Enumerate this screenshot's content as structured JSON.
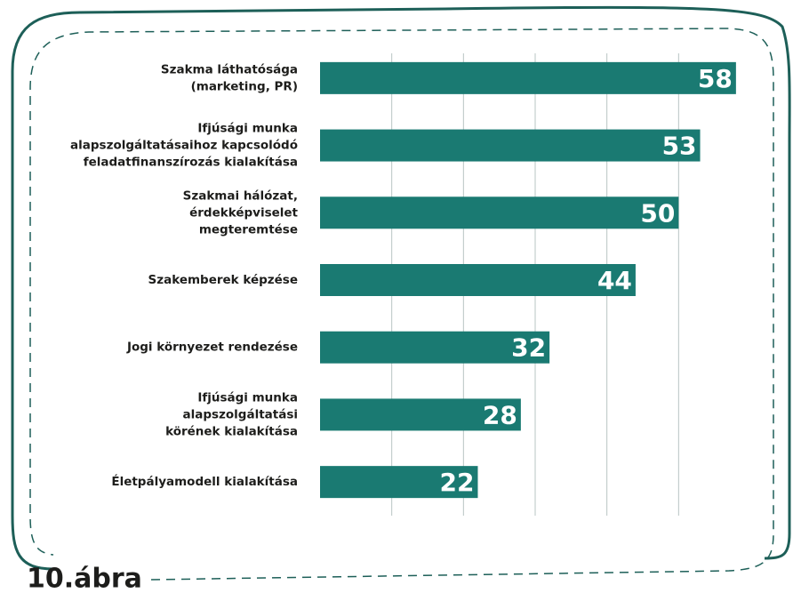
{
  "chart_data": {
    "type": "bar",
    "orientation": "horizontal",
    "title": "10.ábra",
    "categories": [
      [
        "Szakma láthatósága",
        "(marketing, PR)"
      ],
      [
        "Ifjúsági munka",
        "alapszolgáltatásaihoz kapcsolódó",
        "feladatfinanszírozás kialakítása"
      ],
      [
        "Szakmai hálózat,",
        "érdekképviselet",
        "megteremtése"
      ],
      [
        "Szakemberek képzése"
      ],
      [
        "Jogi környezet rendezése"
      ],
      [
        "Ifjúsági munka",
        "alapszolgáltatási",
        "körének kialakítása"
      ],
      [
        "Életpályamodell kialakítása"
      ]
    ],
    "values": [
      58,
      53,
      50,
      44,
      32,
      28,
      22
    ],
    "color": "#1a7a72",
    "xlim": [
      0,
      60
    ],
    "xticks": [
      10,
      20,
      30,
      40,
      50
    ],
    "grid": true
  }
}
